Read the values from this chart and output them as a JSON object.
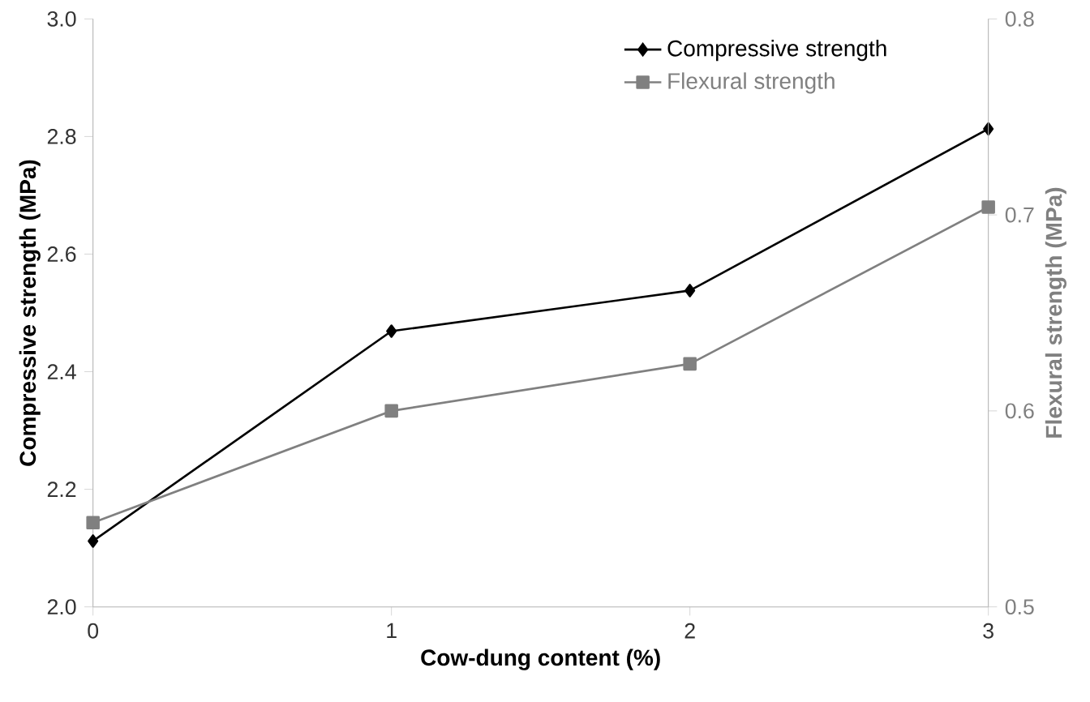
{
  "chart_data": {
    "type": "line",
    "xlabel": "Cow-dung content (%)",
    "ylabel": "Compressive strength (MPa)",
    "y2label": "Flexural strength (MPa)",
    "x": [
      0,
      1,
      2,
      3
    ],
    "xlim": [
      0,
      3
    ],
    "xticks": [
      0,
      1,
      2,
      3
    ],
    "ylim": [
      2.0,
      3.0
    ],
    "yticks": [
      {
        "value": 2.0,
        "label": "2.0"
      },
      {
        "value": 2.2,
        "label": "2.2"
      },
      {
        "value": 2.4,
        "label": "2.4"
      },
      {
        "value": 2.6,
        "label": "2.6"
      },
      {
        "value": 2.8,
        "label": "2.8"
      },
      {
        "value": 3.0,
        "label": "3.0"
      }
    ],
    "y2lim": [
      0.5,
      0.8
    ],
    "y2ticks": [
      {
        "value": 0.5,
        "label": "0.5"
      },
      {
        "value": 0.6,
        "label": "0.6"
      },
      {
        "value": 0.7,
        "label": "0.7"
      },
      {
        "value": 0.8,
        "label": "0.8"
      }
    ],
    "grid": false,
    "legend": "top right",
    "line_style": "solid",
    "series": [
      {
        "name": "Compressive strength",
        "color": "#000000",
        "marker": "diamond",
        "values": [
          2.112,
          2.469,
          2.538,
          2.813
        ]
      },
      {
        "name": "Flexural strength",
        "color": "#808080",
        "marker": "square",
        "axis": "y2",
        "values": [
          0.543,
          0.6,
          0.624,
          0.704
        ]
      }
    ]
  }
}
